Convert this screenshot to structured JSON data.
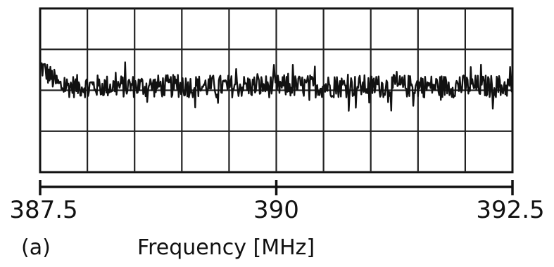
{
  "chart_data": {
    "type": "line",
    "panel_label": "(a)",
    "xlabel": "Frequency [MHz]",
    "xlim": [
      387.5,
      392.5
    ],
    "x_ticks": [
      387.5,
      390,
      392.5
    ],
    "x_tick_labels": [
      "387.5",
      "390",
      "392.5"
    ],
    "x_divisions": 10,
    "y_divisions": 4,
    "grid": true,
    "ylim": [
      0,
      4
    ],
    "series": [
      {
        "description_values": "noise trace, roughly constant level about 2.1 grid divisions above the bottom, amplitude ~0.3 division, slightly elevated at the left edge",
        "mean": 2.1,
        "noise_amplitude": 0.28,
        "start_level": 2.6,
        "points": 600,
        "color": "#111111"
      }
    ]
  }
}
